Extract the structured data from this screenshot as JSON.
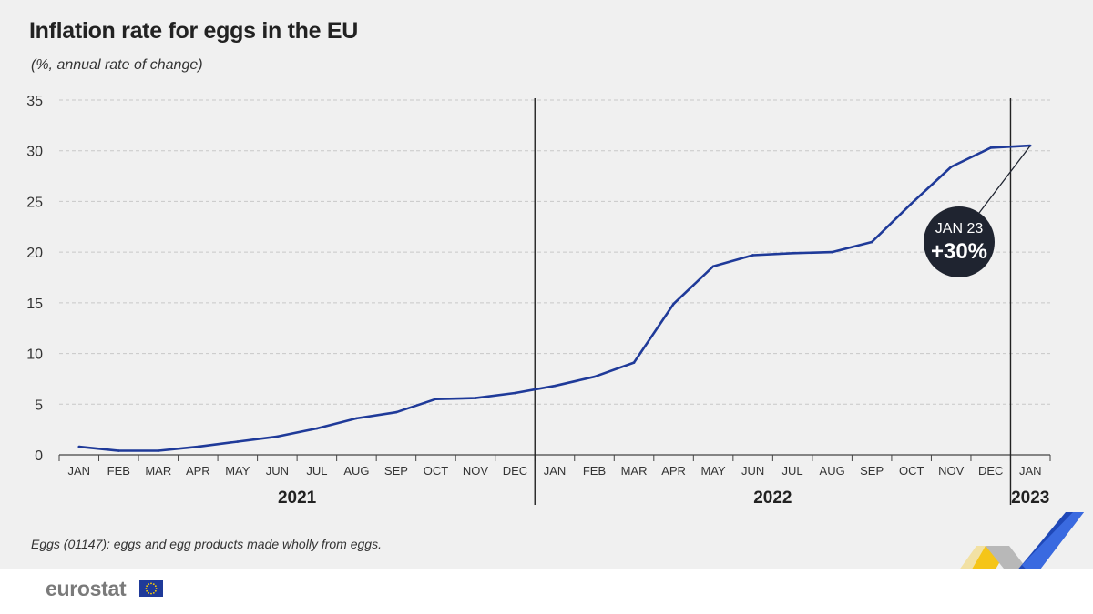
{
  "title": "Inflation rate for eggs in the EU",
  "subtitle": "(%, annual rate of change)",
  "footnote": "Eggs (01147): eggs and egg products made wholly from eggs.",
  "brand": {
    "name": "eurostat"
  },
  "colors": {
    "line": "#1f3a99",
    "badge": "#1f2430",
    "background": "#f0f0f0"
  },
  "annotation": {
    "label": "JAN 23",
    "value": "+30%"
  },
  "chart_data": {
    "type": "line",
    "title": "Inflation rate for eggs in the EU",
    "ylabel": "(%, annual rate of change)",
    "ylim": [
      0,
      35
    ],
    "yticks": [
      0,
      5,
      10,
      15,
      20,
      25,
      30,
      35
    ],
    "grid": true,
    "categories": [
      "JAN",
      "FEB",
      "MAR",
      "APR",
      "MAY",
      "JUN",
      "JUL",
      "AUG",
      "SEP",
      "OCT",
      "NOV",
      "DEC",
      "JAN",
      "FEB",
      "MAR",
      "APR",
      "MAY",
      "JUN",
      "JUL",
      "AUG",
      "SEP",
      "OCT",
      "NOV",
      "DEC",
      "JAN"
    ],
    "years": [
      {
        "label": "2021",
        "start": 0,
        "end": 11
      },
      {
        "label": "2022",
        "start": 12,
        "end": 23
      },
      {
        "label": "2023",
        "start": 24,
        "end": 24
      }
    ],
    "series": [
      {
        "values": [
          0.8,
          0.4,
          0.4,
          0.8,
          1.3,
          1.8,
          2.6,
          3.6,
          4.2,
          5.5,
          5.6,
          6.1,
          6.8,
          7.7,
          9.1,
          14.9,
          18.6,
          19.7,
          19.9,
          20.0,
          21.0,
          24.8,
          28.4,
          30.3,
          30.5
        ]
      }
    ]
  }
}
